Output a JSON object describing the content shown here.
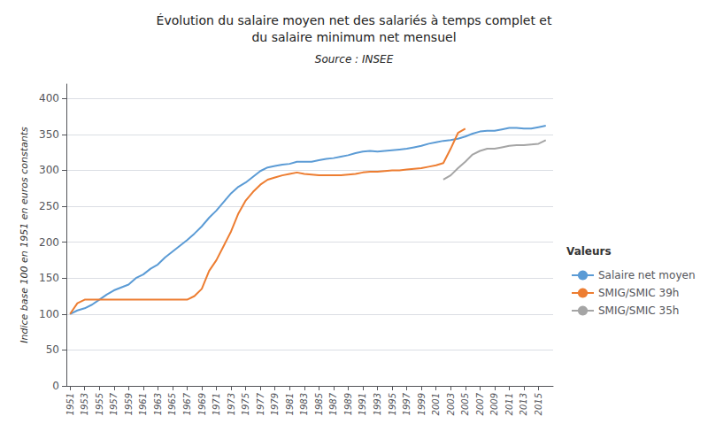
{
  "chart_data": {
    "type": "line",
    "title": "Évolution du salaire moyen net des salariés à temps complet et\ndu salaire minimum net mensuel",
    "subtitle": "Source : INSEE",
    "y_label": "Indice base 100 en 1951 en euros constants",
    "legend_title": "Valeurs",
    "legend": "lower right",
    "grid": true,
    "xlim": [
      1950.5,
      2017
    ],
    "xticks": [
      1951,
      1953,
      1955,
      1957,
      1959,
      1961,
      1963,
      1965,
      1967,
      1969,
      1971,
      1973,
      1975,
      1977,
      1979,
      1981,
      1983,
      1985,
      1987,
      1989,
      1991,
      1993,
      1995,
      1997,
      1999,
      2001,
      2003,
      2005,
      2007,
      2009,
      2011,
      2013,
      2015
    ],
    "ylim": [
      0,
      420
    ],
    "yticks": [
      0,
      50,
      100,
      150,
      200,
      250,
      300,
      350,
      400
    ],
    "series": [
      {
        "name": "Salaire net moyen",
        "color": "#5B9BD5",
        "x": [
          1951,
          1952,
          1953,
          1954,
          1955,
          1956,
          1957,
          1958,
          1959,
          1960,
          1961,
          1962,
          1963,
          1964,
          1965,
          1966,
          1967,
          1968,
          1969,
          1970,
          1971,
          1972,
          1973,
          1974,
          1975,
          1976,
          1977,
          1978,
          1979,
          1980,
          1981,
          1982,
          1983,
          1984,
          1985,
          1986,
          1987,
          1988,
          1989,
          1990,
          1991,
          1992,
          1993,
          1994,
          1995,
          1996,
          1997,
          1998,
          1999,
          2000,
          2001,
          2002,
          2003,
          2004,
          2005,
          2006,
          2007,
          2008,
          2009,
          2010,
          2011,
          2012,
          2013,
          2014,
          2015,
          2016
        ],
        "values": [
          100,
          105,
          108,
          113,
          120,
          127,
          133,
          137,
          141,
          150,
          155,
          163,
          169,
          179,
          187,
          195,
          203,
          212,
          222,
          234,
          244,
          256,
          268,
          277,
          283,
          291,
          299,
          304,
          306,
          308,
          309,
          312,
          312,
          312,
          314,
          316,
          317,
          319,
          321,
          324,
          326,
          327,
          326,
          327,
          328,
          329,
          330,
          332,
          334,
          337,
          339,
          341,
          342,
          344,
          347,
          351,
          354,
          355,
          355,
          357,
          359,
          359,
          358,
          358,
          360,
          362
        ]
      },
      {
        "name": "SMIG/SMIC 39h",
        "color": "#ED7D31",
        "x": [
          1951,
          1952,
          1953,
          1954,
          1955,
          1956,
          1957,
          1958,
          1959,
          1960,
          1961,
          1962,
          1963,
          1964,
          1965,
          1966,
          1967,
          1968,
          1969,
          1970,
          1971,
          1972,
          1973,
          1974,
          1975,
          1976,
          1977,
          1978,
          1979,
          1980,
          1981,
          1982,
          1983,
          1984,
          1985,
          1986,
          1987,
          1988,
          1989,
          1990,
          1991,
          1992,
          1993,
          1994,
          1995,
          1996,
          1997,
          1998,
          1999,
          2000,
          2001,
          2002,
          2003,
          2004,
          2005
        ],
        "values": [
          100,
          115,
          120,
          120,
          120,
          120,
          120,
          120,
          120,
          120,
          120,
          120,
          120,
          120,
          120,
          120,
          120,
          125,
          135,
          160,
          175,
          195,
          215,
          240,
          258,
          270,
          280,
          287,
          290,
          293,
          295,
          297,
          295,
          294,
          293,
          293,
          293,
          293,
          294,
          295,
          297,
          298,
          298,
          299,
          300,
          300,
          301,
          302,
          303,
          305,
          307,
          310,
          330,
          352,
          358
        ]
      },
      {
        "name": "SMIG/SMIC 35h",
        "color": "#A5A5A5",
        "x": [
          2002,
          2003,
          2004,
          2005,
          2006,
          2007,
          2008,
          2009,
          2010,
          2011,
          2012,
          2013,
          2014,
          2015,
          2016
        ],
        "values": [
          287,
          293,
          303,
          312,
          322,
          327,
          330,
          330,
          332,
          334,
          335,
          335,
          336,
          337,
          342
        ]
      }
    ]
  }
}
